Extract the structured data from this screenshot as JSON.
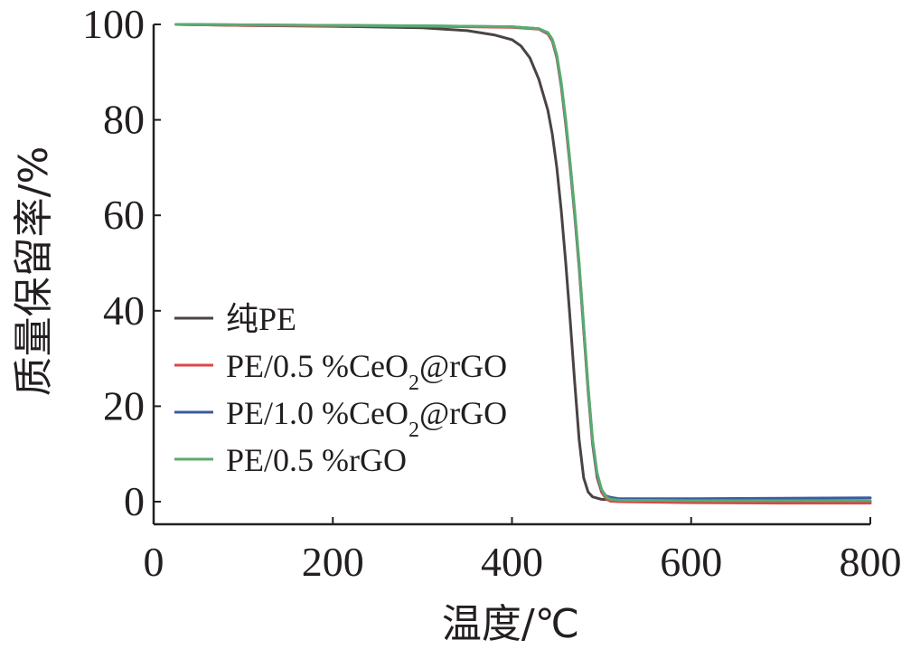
{
  "chart_data": {
    "type": "line",
    "xlabel": "温度/℃",
    "ylabel": "质量保留率/%",
    "xlim": [
      0,
      800
    ],
    "ylim": [
      0,
      100
    ],
    "x_ticks": [
      0,
      200,
      400,
      600,
      800
    ],
    "y_ticks": [
      0,
      20,
      40,
      60,
      80,
      100
    ],
    "grid": false,
    "legend_position": "lower-left",
    "series": [
      {
        "name": "纯PE",
        "color": "#4a4344",
        "x": [
          25,
          100,
          200,
          300,
          350,
          380,
          400,
          410,
          420,
          430,
          440,
          445,
          450,
          455,
          460,
          465,
          470,
          475,
          480,
          485,
          490,
          500,
          520,
          600,
          700,
          800
        ],
        "y": [
          100,
          99.8,
          99.6,
          99.3,
          98.7,
          97.8,
          96.8,
          95.5,
          93.0,
          88.5,
          82.0,
          77.0,
          70.0,
          61.0,
          50.0,
          38.0,
          25.0,
          13.0,
          5.0,
          2.0,
          1.0,
          0.5,
          0.3,
          0.2,
          0.1,
          0.1
        ]
      },
      {
        "name": "PE/0.5 %CeO₂@rGO",
        "color": "#d9464a",
        "x": [
          25,
          100,
          200,
          300,
          400,
          430,
          440,
          445,
          450,
          455,
          460,
          465,
          470,
          475,
          480,
          485,
          490,
          495,
          500,
          505,
          510,
          520,
          600,
          700,
          800
        ],
        "y": [
          100,
          99.8,
          99.7,
          99.6,
          99.4,
          99.0,
          98.0,
          96.5,
          93.0,
          87.0,
          79.0,
          70.0,
          60.0,
          49.0,
          36.0,
          23.0,
          12.0,
          5.0,
          2.0,
          0.6,
          0.1,
          0.0,
          -0.2,
          -0.3,
          -0.3
        ]
      },
      {
        "name": "PE/1.0 %CeO₂@rGO",
        "color": "#3b5aa0",
        "x": [
          25,
          100,
          200,
          300,
          400,
          430,
          440,
          445,
          450,
          455,
          460,
          465,
          470,
          475,
          480,
          485,
          490,
          495,
          500,
          505,
          510,
          520,
          600,
          700,
          800
        ],
        "y": [
          100,
          99.9,
          99.8,
          99.7,
          99.5,
          99.1,
          98.2,
          96.8,
          93.4,
          87.5,
          79.5,
          70.5,
          60.5,
          49.5,
          36.5,
          23.5,
          12.5,
          5.5,
          2.4,
          1.2,
          0.9,
          0.6,
          0.6,
          0.7,
          0.8
        ]
      },
      {
        "name": "PE/0.5 %rGO",
        "color": "#5aab6e",
        "x": [
          25,
          100,
          200,
          300,
          400,
          430,
          440,
          445,
          450,
          455,
          460,
          465,
          470,
          475,
          480,
          485,
          490,
          495,
          500,
          505,
          510,
          520,
          600,
          700,
          800
        ],
        "y": [
          100,
          99.9,
          99.8,
          99.7,
          99.5,
          99.1,
          98.3,
          96.9,
          93.6,
          87.8,
          80.0,
          71.0,
          61.0,
          50.0,
          37.0,
          24.0,
          13.0,
          6.0,
          2.6,
          1.0,
          0.5,
          0.3,
          0.2,
          0.2,
          0.2
        ]
      }
    ],
    "legend": [
      {
        "prefix": "纯PE",
        "subscript": "",
        "suffix": ""
      },
      {
        "prefix": "PE/0.5 %CeO",
        "subscript": "2",
        "suffix": "@rGO"
      },
      {
        "prefix": "PE/1.0 %CeO",
        "subscript": "2",
        "suffix": "@rGO"
      },
      {
        "prefix": "PE/0.5 %rGO",
        "subscript": "",
        "suffix": ""
      }
    ]
  }
}
